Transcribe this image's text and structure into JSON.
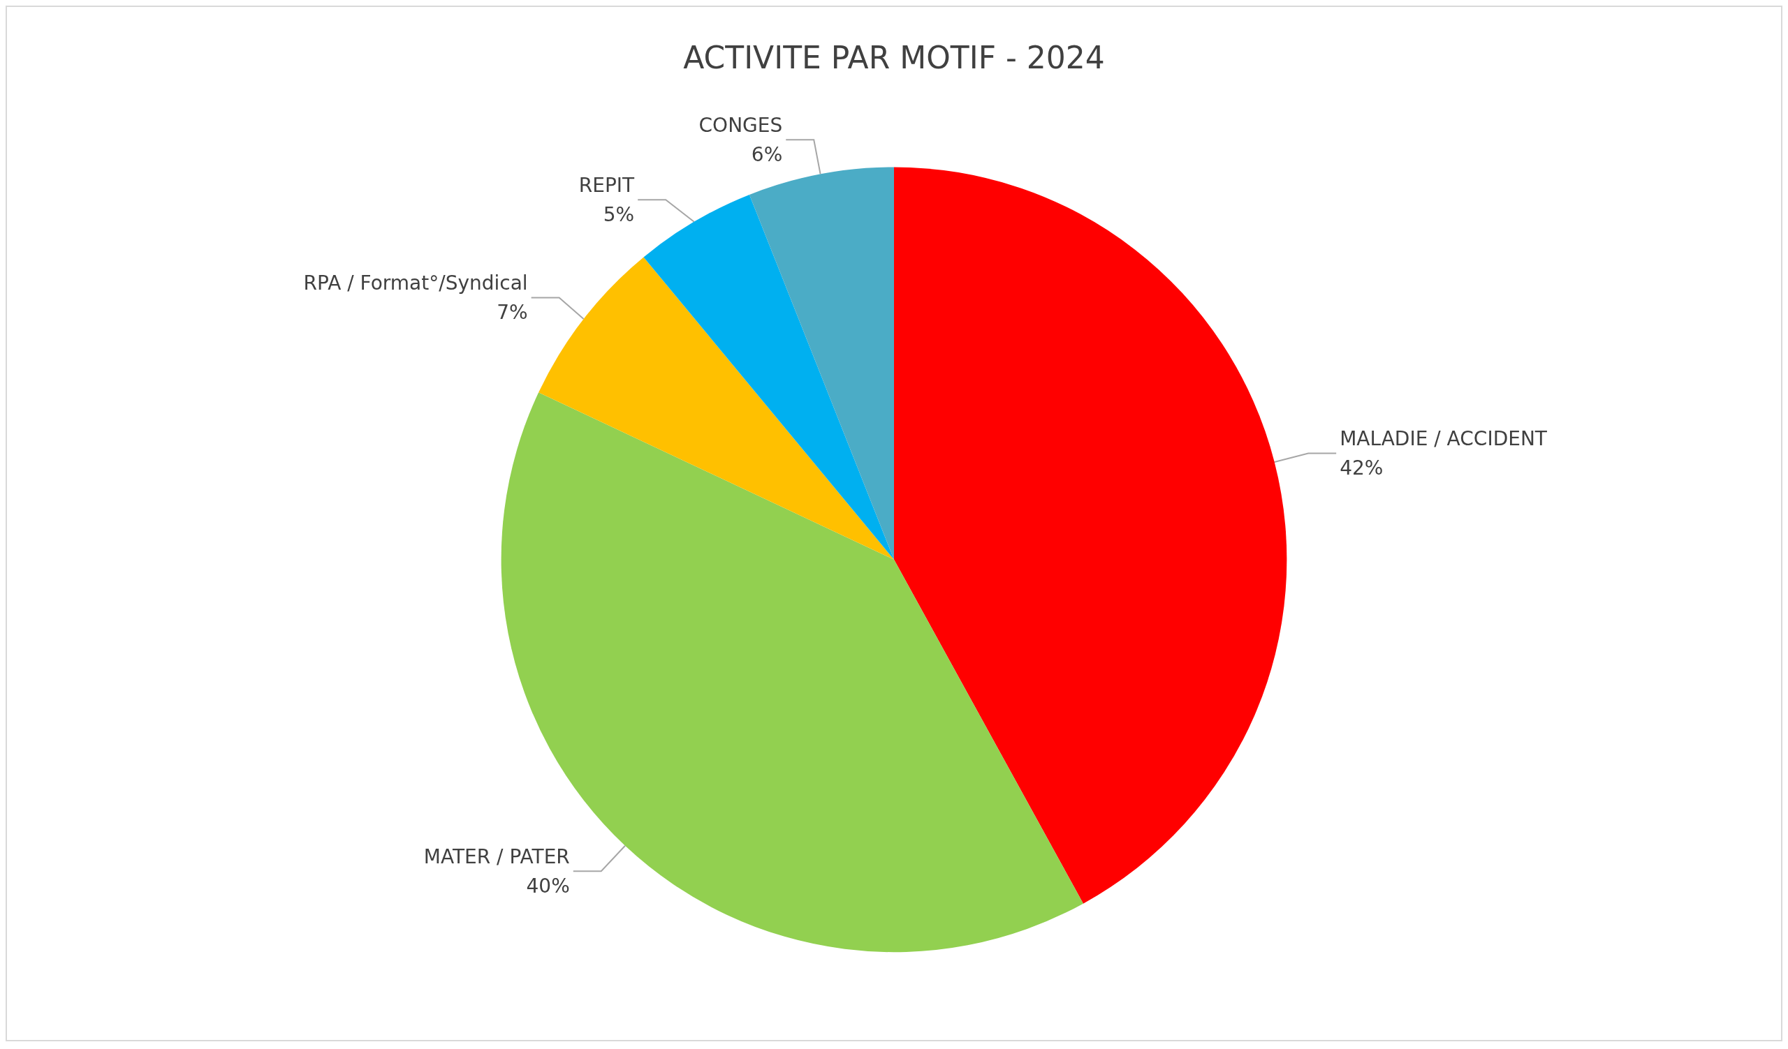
{
  "chart_data": {
    "type": "pie",
    "title": "ACTIVITE PAR MOTIF - 2024",
    "categories": [
      "MALADIE / ACCIDENT",
      "MATER / PATER",
      "RPA / Format°/Syndical",
      "REPIT",
      "CONGES"
    ],
    "values": [
      42,
      40,
      7,
      5,
      6
    ],
    "colors": [
      "#ff0000",
      "#92d050",
      "#ffc000",
      "#00b0f0",
      "#4bacc6"
    ],
    "value_labels": [
      "42%",
      "40%",
      "7%",
      "5%",
      "6%"
    ]
  }
}
